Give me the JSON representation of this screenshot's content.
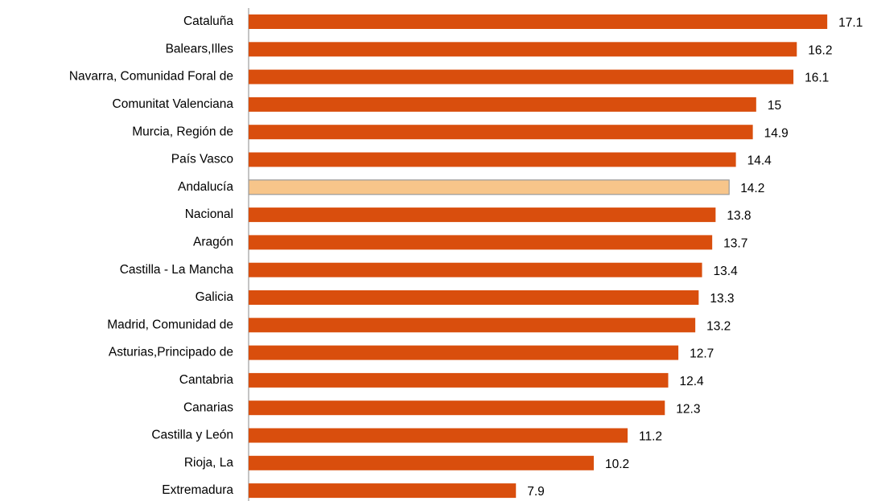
{
  "chart_data": {
    "type": "hbar",
    "categories": [
      "Cataluña",
      "Balears,Illes",
      "Navarra, Comunidad Foral de",
      "Comunitat Valenciana",
      "Murcia, Región de",
      "País Vasco",
      "Andalucía",
      "Nacional",
      "Aragón",
      "Castilla - La Mancha",
      "Galicia",
      "Madrid, Comunidad de",
      "Asturias,Principado de",
      "Cantabria",
      "Canarias",
      "Castilla y León",
      "Rioja, La",
      "Extremadura"
    ],
    "values": [
      17.1,
      16.2,
      16.1,
      15,
      14.9,
      14.4,
      14.2,
      13.8,
      13.7,
      13.4,
      13.3,
      13.2,
      12.7,
      12.4,
      12.3,
      11.2,
      10.2,
      7.9
    ],
    "colors": [
      "#d94e0d",
      "#d94e0d",
      "#d94e0d",
      "#d94e0d",
      "#d94e0d",
      "#d94e0d",
      "#f7c58a",
      "#d94e0d",
      "#d94e0d",
      "#d94e0d",
      "#d94e0d",
      "#d94e0d",
      "#d94e0d",
      "#d94e0d",
      "#d94e0d",
      "#d94e0d",
      "#d94e0d",
      "#d94e0d"
    ],
    "xlim": [
      0,
      18
    ]
  }
}
